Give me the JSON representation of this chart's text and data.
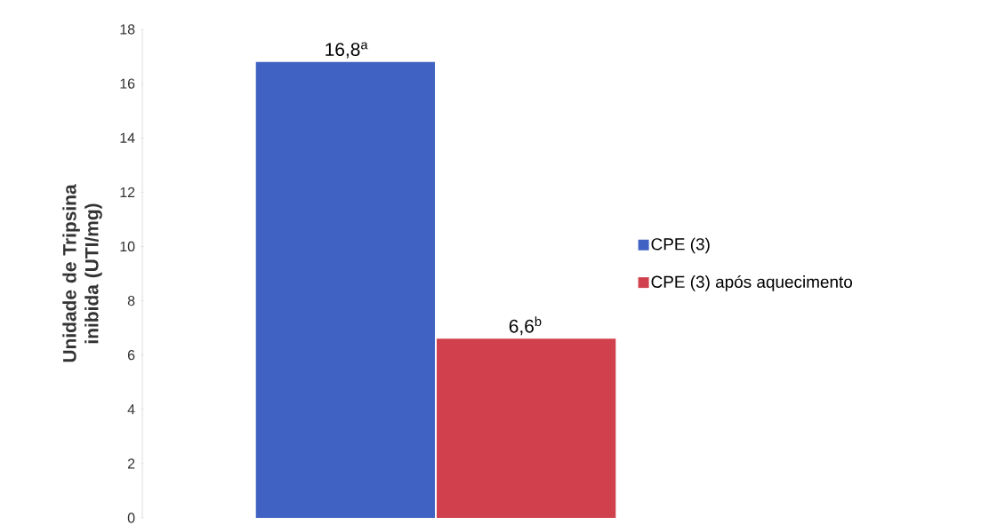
{
  "chart_data": {
    "type": "bar",
    "ylabel": "Unidade de Tripsina inibida (UTI/mg)",
    "categories": [
      null
    ],
    "series": [
      {
        "name": "CPE (3)",
        "color": "#4062c2",
        "values": [
          16.8
        ],
        "value_labels": [
          "16,8$^{a}$"
        ]
      },
      {
        "name": "CPE (3) após aquecimento",
        "color": "#d0414d",
        "values": [
          6.6
        ],
        "value_labels": [
          "6,6$^{b}$"
        ]
      }
    ],
    "ylim": [
      0,
      18
    ],
    "yticks": [
      0,
      2,
      4,
      6,
      8,
      10,
      12,
      14,
      16,
      18
    ],
    "legend": "right",
    "grid": false
  }
}
